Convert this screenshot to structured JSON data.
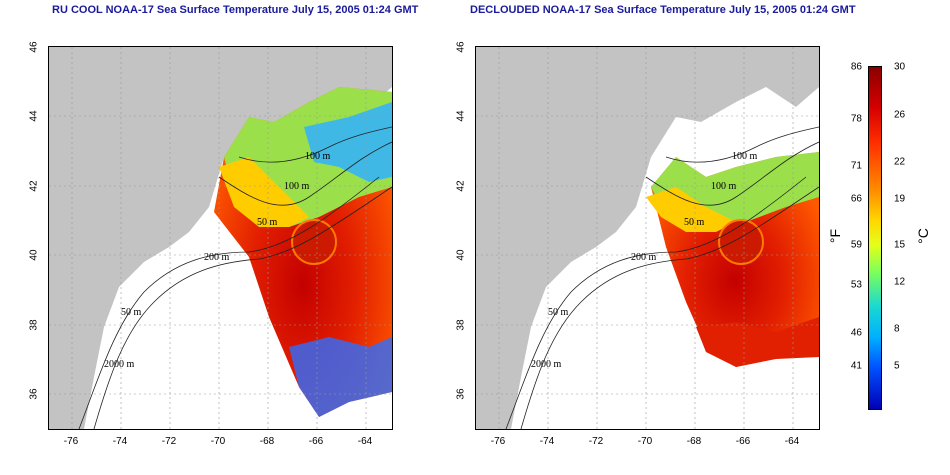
{
  "titles": {
    "left": "RU COOL NOAA-17 Sea Surface Temperature July 15, 2005 01:24 GMT",
    "right": "DECLOUDED NOAA-17 Sea Surface Temperature July 15, 2005 01:24 GMT"
  },
  "axes": {
    "x_ticks": [
      "-76",
      "-74",
      "-72",
      "-70",
      "-68",
      "-66",
      "-64"
    ],
    "y_ticks": [
      "46",
      "44",
      "42",
      "40",
      "38",
      "36"
    ]
  },
  "contour_labels": [
    "100 m",
    "100 m",
    "50 m",
    "200 m",
    "50 m",
    "2000 m"
  ],
  "colorbar": {
    "f_ticks": [
      "86",
      "78",
      "71",
      "66",
      "59",
      "53",
      "46",
      "41"
    ],
    "c_ticks": [
      "30",
      "26",
      "22",
      "19",
      "15",
      "12",
      "8",
      "5"
    ],
    "f_unit": "°F",
    "c_unit": "°C"
  },
  "colors": {
    "land": "#c3c3c3",
    "title": "#1a1a9c"
  }
}
